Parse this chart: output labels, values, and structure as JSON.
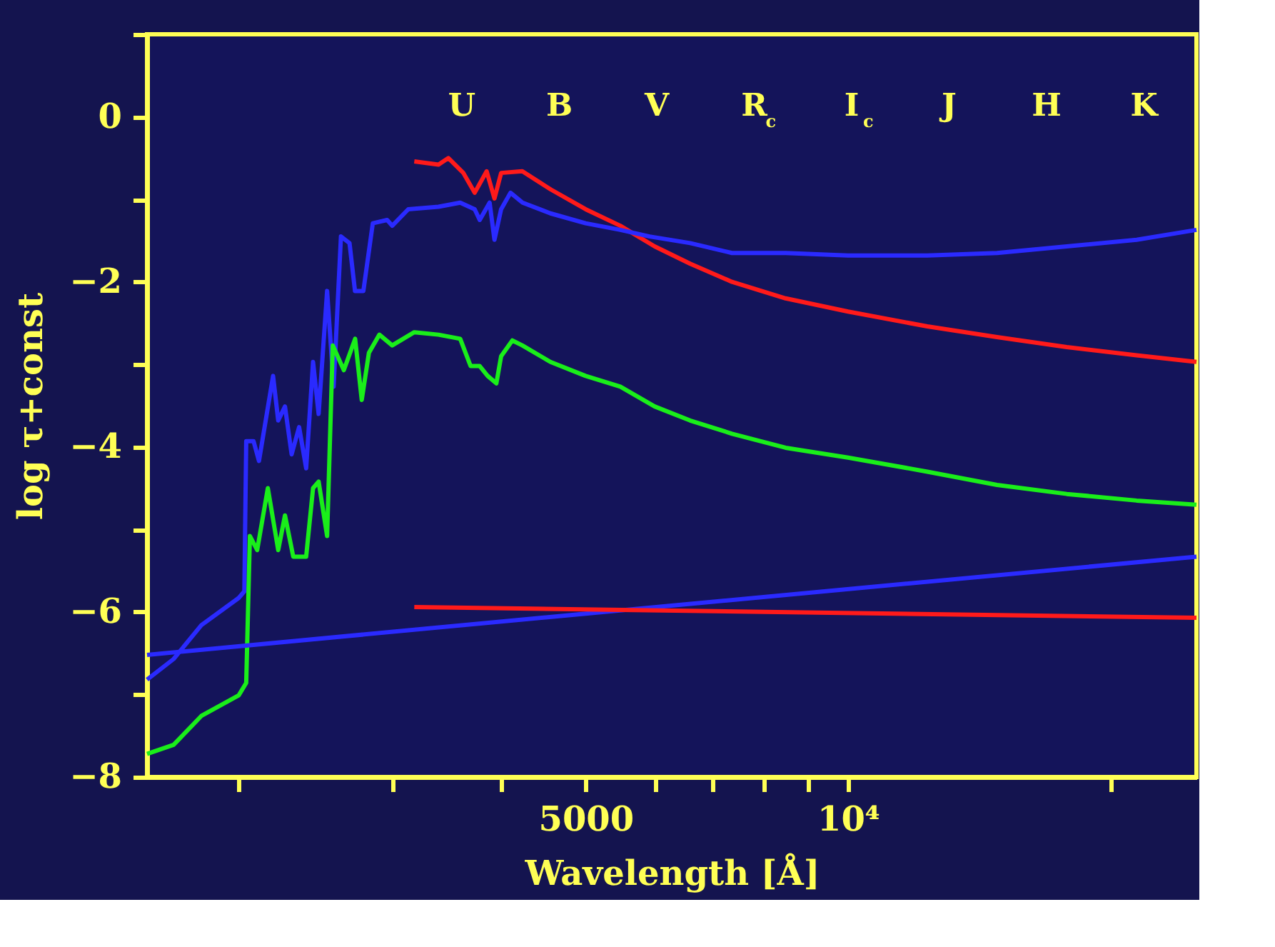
{
  "chart_data": {
    "type": "line",
    "xlabel": "Wavelength [Å]",
    "ylabel": "log τ+const",
    "log": "x",
    "grid": false,
    "legend": false,
    "marker": "none",
    "line_style": "solid",
    "xlim": [
      1570,
      25100
    ],
    "ylim": [
      -8,
      1
    ],
    "xticks": [
      {
        "value": 2000,
        "label": null
      },
      {
        "value": 3000,
        "label": null
      },
      {
        "value": 4000,
        "label": null
      },
      {
        "value": 5000,
        "label": "5000"
      },
      {
        "value": 6000,
        "label": null
      },
      {
        "value": 7000,
        "label": null
      },
      {
        "value": 8000,
        "label": null
      },
      {
        "value": 9000,
        "label": null
      },
      {
        "value": 10000,
        "label": "10⁴"
      },
      {
        "value": 20000,
        "label": null
      }
    ],
    "yticks": [
      {
        "value": -8,
        "label": "−8"
      },
      {
        "value": -7,
        "label": null
      },
      {
        "value": -6,
        "label": "−6"
      },
      {
        "value": -5,
        "label": null
      },
      {
        "value": -4,
        "label": "−4"
      },
      {
        "value": -3,
        "label": null
      },
      {
        "value": -2,
        "label": "−2"
      },
      {
        "value": -1,
        "label": null
      },
      {
        "value": 0,
        "label": "0"
      },
      {
        "value": 1,
        "label": null
      }
    ],
    "annotations": [
      "U",
      "B",
      "V",
      "R$_{c}$",
      "I$_{c}$",
      "J",
      "H",
      "K"
    ],
    "series": [
      {
        "color": "#ff1a1a",
        "x": [
          3180,
          3390,
          3480,
          3620,
          3730,
          3850,
          3930,
          4000,
          4230,
          4560,
          5000,
          5480,
          6000,
          6590,
          7360,
          8480,
          10000,
          12330,
          14820,
          17820,
          21430,
          25100
        ],
        "values": [
          -0.54,
          -0.58,
          -0.5,
          -0.68,
          -0.92,
          -0.66,
          -0.99,
          -0.68,
          -0.66,
          -0.88,
          -1.12,
          -1.32,
          -1.57,
          -1.78,
          -2.0,
          -2.2,
          -2.36,
          -2.54,
          -2.67,
          -2.79,
          -2.89,
          -2.97
        ]
      },
      {
        "color": "#2a2aff",
        "x": [
          1570,
          1684,
          1812,
          2000,
          2030,
          2040,
          2080,
          2110,
          2190,
          2220,
          2260,
          2300,
          2346,
          2390,
          2434,
          2470,
          2526,
          2570,
          2620,
          2680,
          2719,
          2780,
          2850,
          2960,
          3000,
          3130,
          3390,
          3590,
          3730,
          3780,
          3880,
          3930,
          4000,
          4100,
          4233,
          4556,
          5000,
          5480,
          5920,
          6590,
          7360,
          8480,
          10000,
          12330,
          14820,
          17820,
          21430,
          25100
        ],
        "values": [
          -6.82,
          -6.57,
          -6.16,
          -5.83,
          -5.75,
          -3.93,
          -3.93,
          -4.17,
          -3.14,
          -3.68,
          -3.51,
          -4.09,
          -3.76,
          -4.26,
          -2.97,
          -3.6,
          -2.11,
          -3.27,
          -1.45,
          -1.53,
          -2.11,
          -2.11,
          -1.29,
          -1.25,
          -1.32,
          -1.12,
          -1.09,
          -1.04,
          -1.12,
          -1.25,
          -1.04,
          -1.49,
          -1.12,
          -0.92,
          -1.04,
          -1.17,
          -1.29,
          -1.37,
          -1.45,
          -1.53,
          -1.65,
          -1.65,
          -1.68,
          -1.68,
          -1.65,
          -1.57,
          -1.49,
          -1.37
        ]
      },
      {
        "color": "#1aee1a",
        "x": [
          1570,
          1684,
          1812,
          2000,
          2040,
          2060,
          2100,
          2160,
          2220,
          2260,
          2310,
          2390,
          2434,
          2470,
          2526,
          2564,
          2640,
          2720,
          2768,
          2821,
          2900,
          3000,
          3180,
          3390,
          3590,
          3690,
          3780,
          3860,
          3950,
          4000,
          4120,
          4230,
          4556,
          5000,
          5480,
          6000,
          6590,
          7360,
          8480,
          10000,
          12330,
          14820,
          17820,
          21430,
          25100
        ],
        "values": [
          -7.72,
          -7.61,
          -7.26,
          -7.01,
          -6.86,
          -5.08,
          -5.25,
          -4.5,
          -5.25,
          -4.83,
          -5.33,
          -5.33,
          -4.5,
          -4.42,
          -5.08,
          -2.77,
          -3.07,
          -2.69,
          -3.43,
          -2.86,
          -2.64,
          -2.77,
          -2.61,
          -2.64,
          -2.69,
          -3.02,
          -3.02,
          -3.14,
          -3.23,
          -2.9,
          -2.71,
          -2.77,
          -2.97,
          -3.14,
          -3.27,
          -3.51,
          -3.68,
          -3.84,
          -4.01,
          -4.13,
          -4.3,
          -4.46,
          -4.57,
          -4.65,
          -4.7
        ]
      },
      {
        "color": "#2a2aff",
        "x": [
          1570,
          5000,
          25100
        ],
        "values": [
          -6.52,
          -6.02,
          -5.33
        ]
      },
      {
        "color": "#ff1a1a",
        "x": [
          3180,
          25100
        ],
        "values": [
          -5.94,
          -6.07
        ]
      }
    ]
  }
}
